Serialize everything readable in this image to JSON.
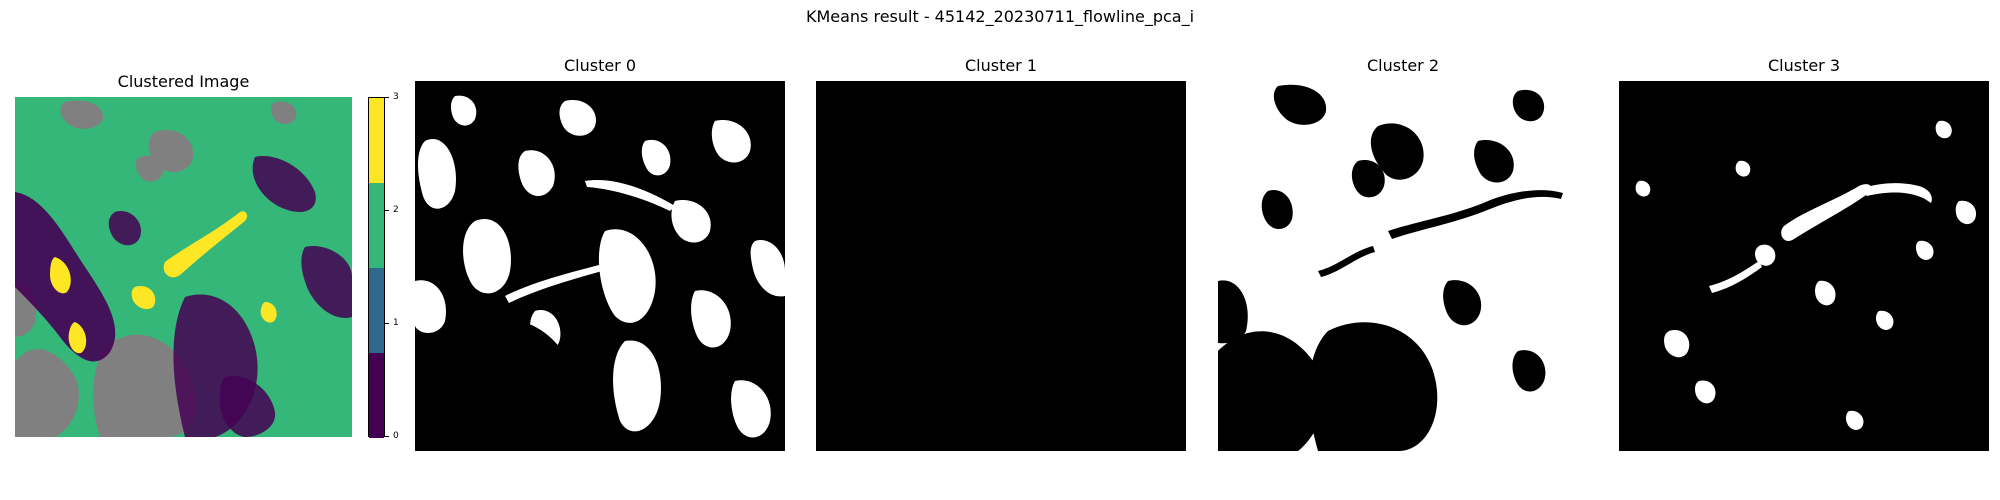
{
  "figure": {
    "title": "KMeans result - 45142_20230711_flowline_pca_i"
  },
  "clustered_panel": {
    "title": "Clustered Image"
  },
  "colorbar": {
    "ticks": [
      "0",
      "1",
      "2",
      "3"
    ],
    "colors": [
      "#440154",
      "#31688e",
      "#35b779",
      "#fde725"
    ]
  },
  "cluster_panels": [
    {
      "title": "Cluster 0"
    },
    {
      "title": "Cluster 1"
    },
    {
      "title": "Cluster 2"
    },
    {
      "title": "Cluster 3"
    }
  ],
  "colors": {
    "background_gray": "#808080",
    "mask_white": "#ffffff",
    "mask_black": "#000000"
  }
}
